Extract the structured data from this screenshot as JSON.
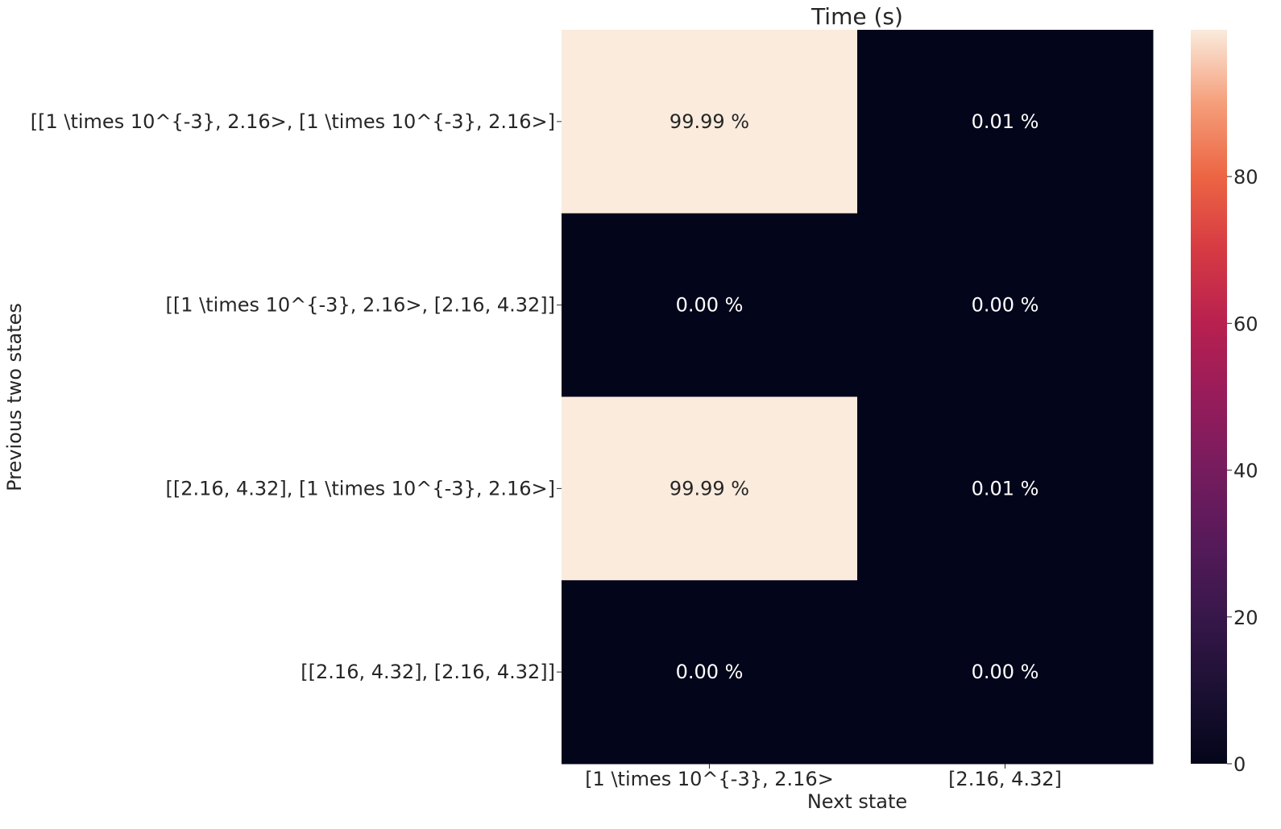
{
  "chart_data": {
    "type": "heatmap",
    "title": "Time (s)",
    "xlabel": "Next state",
    "ylabel": "Previous two states",
    "x_categories": [
      "[1 \\times 10^{-3}, 2.16>",
      "[2.16, 4.32]"
    ],
    "y_categories": [
      "[[1 \\times 10^{-3}, 2.16>, [1 \\times 10^{-3}, 2.16>]",
      "[[1 \\times 10^{-3}, 2.16>, [2.16, 4.32]]",
      "[[2.16, 4.32], [1 \\times 10^{-3}, 2.16>]",
      "[[2.16, 4.32], [2.16, 4.32]]"
    ],
    "values": [
      [
        99.99,
        0.01
      ],
      [
        0.0,
        0.0
      ],
      [
        99.99,
        0.01
      ],
      [
        0.0,
        0.0
      ]
    ],
    "annotations": [
      [
        "99.99 %",
        "0.01 %"
      ],
      [
        "0.00 %",
        "0.00 %"
      ],
      [
        "99.99 %",
        "0.01 %"
      ],
      [
        "0.00 %",
        "0.00 %"
      ]
    ],
    "colormap": "rocket",
    "colorbar": {
      "range": [
        0,
        99.99
      ],
      "ticks": [
        0,
        20,
        40,
        60,
        80
      ],
      "tick_labels": [
        "0",
        "20",
        "40",
        "60",
        "80"
      ]
    },
    "colors": {
      "low": "#03051a",
      "high": "#faebdd",
      "text_on_dark": "#ffffff",
      "text_on_light": "#262626"
    }
  }
}
